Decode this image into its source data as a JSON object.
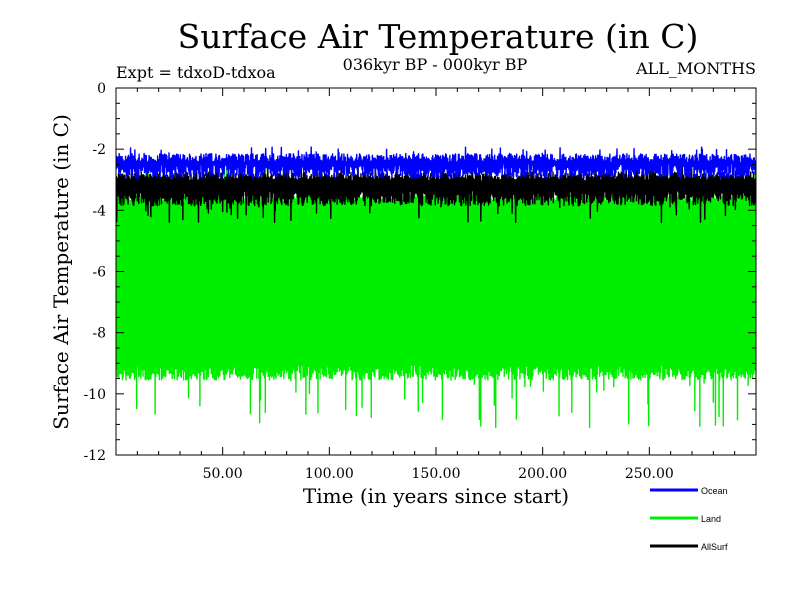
{
  "chart_data": {
    "type": "line",
    "title": "Surface Air Temperature (in C)",
    "subtitle": "036kyr BP - 000kyr BP",
    "experiment": "Expt = tdxoD-tdxoa",
    "months": "ALL_MONTHS",
    "xlabel": "Time (in years since start)",
    "ylabel": "Surface Air Temperature (in C)",
    "xlim": [
      0,
      300
    ],
    "ylim": [
      -12,
      0
    ],
    "x_ticks": [
      50,
      100,
      150,
      200,
      250
    ],
    "x_tick_labels": [
      "50.00",
      "100.00",
      "150.00",
      "200.00",
      "250.00"
    ],
    "y_ticks": [
      0,
      -2,
      -4,
      -6,
      -8,
      -10,
      -12
    ],
    "y_tick_labels": [
      "0",
      "-2",
      "-4",
      "-6",
      "-8",
      "-10",
      "-12"
    ],
    "grid": false,
    "legend_position": "bottom-right",
    "series": [
      {
        "name": "Land",
        "color": "#00ee00",
        "x_range": [
          0,
          300
        ],
        "monthly_min": {
          "typical": -9.3,
          "extreme": -11.1,
          "extreme_at": 178
        },
        "monthly_max": {
          "typical": -3.6,
          "extreme": -2.5
        }
      },
      {
        "name": "AllSurf",
        "color": "#000000",
        "x_range": [
          0,
          300
        ],
        "monthly_min": {
          "typical": -3.6,
          "extreme": -4.4
        },
        "monthly_max": {
          "typical": -2.9,
          "extreme": -2.4
        }
      },
      {
        "name": "Ocean",
        "color": "#0000ff",
        "x_range": [
          0,
          300
        ],
        "monthly_min": {
          "typical": -2.7,
          "extreme": -2.9
        },
        "monthly_max": {
          "typical": -2.3,
          "extreme": -1.9
        }
      }
    ],
    "legend": [
      {
        "name": "Ocean",
        "color": "#0000ff"
      },
      {
        "name": "Land",
        "color": "#00ee00"
      },
      {
        "name": "AllSurf",
        "color": "#000000"
      }
    ]
  }
}
